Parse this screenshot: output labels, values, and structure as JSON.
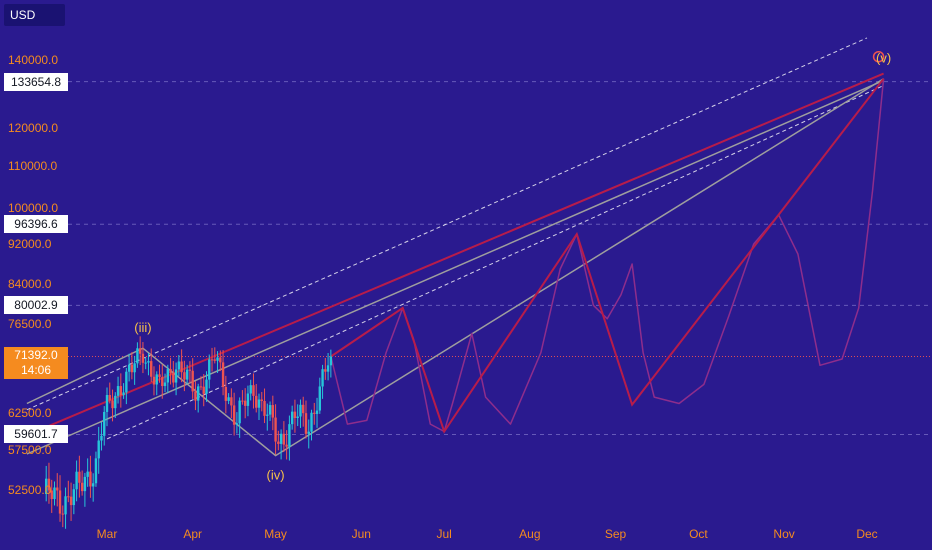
{
  "currency": "USD",
  "price_tags": [
    {
      "value": "133654.8",
      "price": 133654.8
    },
    {
      "value": "96396.6",
      "price": 96396.6
    },
    {
      "value": "80002.9",
      "price": 80002.9
    },
    {
      "value": "59601.7",
      "price": 59601.7
    }
  ],
  "live_price": {
    "value": "71392.0",
    "countdown": "14:06",
    "price": 71392.0
  },
  "colors": {
    "background": "#2a1a8f",
    "axis_text": "#f58b1f",
    "candle_up": "#26c6da",
    "candle_down": "#ef5350",
    "projection": "#b71c4a",
    "channel": "#ffffff",
    "wave": "#9e9e9e"
  },
  "chart_data": {
    "type": "candlestick",
    "title": "",
    "xlabel": "",
    "ylabel": "",
    "y_tick_labels": [
      "140000.0",
      "120000.0",
      "110000.0",
      "100000.0",
      "92000.0",
      "84000.0",
      "76500.0",
      "62500.0",
      "57500.0",
      "52500.0"
    ],
    "y_ticks": [
      140000,
      120000,
      110000,
      100000,
      92000,
      84000,
      76500,
      62500,
      57500,
      52500
    ],
    "x_tick_labels": [
      "Mar",
      "Apr",
      "May",
      "Jun",
      "Jul",
      "Aug",
      "Sep",
      "Oct",
      "Nov",
      "Dec"
    ],
    "x_ticks": [
      "2024-03-01",
      "2024-04-01",
      "2024-05-01",
      "2024-06-01",
      "2024-07-01",
      "2024-08-01",
      "2024-09-01",
      "2024-10-01",
      "2024-11-01",
      "2024-12-01"
    ],
    "close_path": [
      [
        "2024-02-07",
        52000
      ],
      [
        "2024-02-13",
        51200
      ],
      [
        "2024-02-20",
        52500
      ],
      [
        "2024-02-26",
        56000
      ],
      [
        "2024-02-29",
        62000
      ],
      [
        "2024-03-05",
        66500
      ],
      [
        "2024-03-10",
        69000
      ],
      [
        "2024-03-14",
        72500
      ],
      [
        "2024-03-20",
        66000
      ],
      [
        "2024-03-26",
        70500
      ],
      [
        "2024-04-02",
        65500
      ],
      [
        "2024-04-09",
        71000
      ],
      [
        "2024-04-17",
        61500
      ],
      [
        "2024-04-23",
        66500
      ],
      [
        "2024-04-30",
        60500
      ],
      [
        "2024-05-02",
        58500
      ],
      [
        "2024-05-08",
        62000
      ],
      [
        "2024-05-13",
        61000
      ],
      [
        "2024-05-17",
        66000
      ],
      [
        "2024-05-21",
        71392
      ]
    ],
    "wave_labels": [
      {
        "label": "(iii)",
        "date": "2024-03-14",
        "price": 72700
      },
      {
        "label": "(iv)",
        "date": "2024-05-01",
        "price": 56800
      },
      {
        "label": "(v)",
        "date": "2024-12-07",
        "price": 134500
      }
    ],
    "elliott_wave_path": [
      [
        "2024-02-01",
        64000
      ],
      [
        "2024-03-14",
        72700
      ],
      [
        "2024-05-01",
        56800
      ],
      [
        "2024-12-07",
        134500
      ]
    ],
    "projection_zigzag": [
      [
        "2024-05-21",
        71392
      ],
      [
        "2024-06-16",
        79500
      ],
      [
        "2024-07-01",
        60000
      ],
      [
        "2024-08-18",
        94200
      ],
      [
        "2024-09-07",
        63800
      ],
      [
        "2024-12-07",
        134500
      ]
    ],
    "projection_curve": [
      [
        "2024-05-21",
        71392
      ],
      [
        "2024-05-27",
        61000
      ],
      [
        "2024-06-03",
        61500
      ],
      [
        "2024-06-10",
        72000
      ],
      [
        "2024-06-16",
        79500
      ],
      [
        "2024-06-20",
        74000
      ],
      [
        "2024-06-26",
        61000
      ],
      [
        "2024-07-01",
        60000
      ],
      [
        "2024-07-04",
        64000
      ],
      [
        "2024-07-11",
        75000
      ],
      [
        "2024-07-16",
        65000
      ],
      [
        "2024-07-25",
        61000
      ],
      [
        "2024-08-05",
        72000
      ],
      [
        "2024-08-12",
        87000
      ],
      [
        "2024-08-18",
        94200
      ],
      [
        "2024-08-24",
        80000
      ],
      [
        "2024-08-29",
        77500
      ],
      [
        "2024-09-03",
        82000
      ],
      [
        "2024-09-07",
        88000
      ],
      [
        "2024-09-11",
        72000
      ],
      [
        "2024-09-15",
        65000
      ],
      [
        "2024-09-24",
        64000
      ],
      [
        "2024-10-03",
        67000
      ],
      [
        "2024-10-12",
        78000
      ],
      [
        "2024-10-21",
        92000
      ],
      [
        "2024-10-30",
        98500
      ],
      [
        "2024-11-06",
        90000
      ],
      [
        "2024-11-14",
        70000
      ],
      [
        "2024-11-22",
        71000
      ],
      [
        "2024-11-28",
        79500
      ],
      [
        "2024-12-03",
        104000
      ],
      [
        "2024-12-07",
        134500
      ]
    ],
    "upper_channel": [
      [
        "2024-02-01",
        63000
      ],
      [
        "2024-12-01",
        146500
      ]
    ],
    "mid_channel_upper": [
      [
        "2024-02-01",
        59500
      ],
      [
        "2024-12-07",
        136000
      ]
    ],
    "mid_channel_lower": [
      [
        "2024-03-01",
        59000
      ],
      [
        "2024-12-07",
        132500
      ]
    ],
    "lower_channel": [
      [
        "2024-02-01",
        57000
      ],
      [
        "2024-12-07",
        134000
      ]
    ],
    "horizontal_levels": [
      133654.8,
      96396.6,
      80002.9,
      71392.0,
      59601.7
    ],
    "legend": "none",
    "grid": false
  }
}
